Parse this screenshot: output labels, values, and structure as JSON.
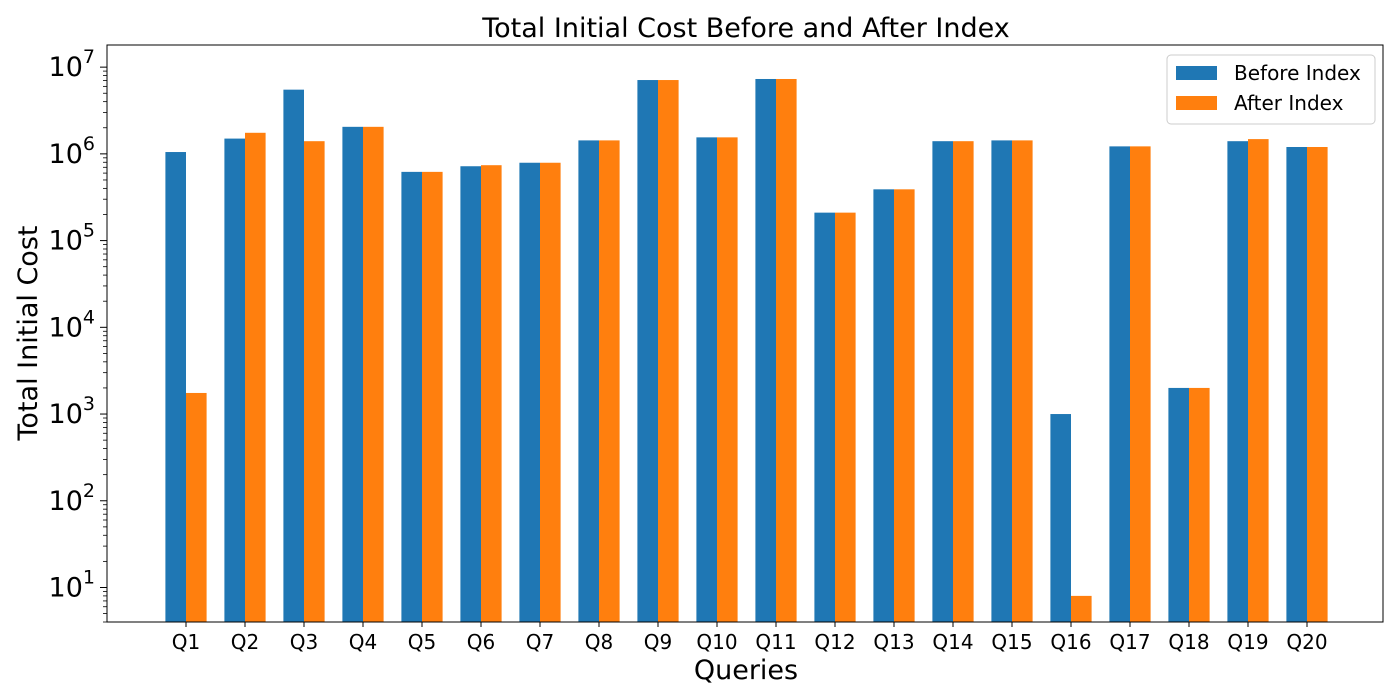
{
  "chart_data": {
    "type": "bar",
    "title": "Total Initial Cost Before and After Index",
    "xlabel": "Queries",
    "ylabel": "Total Initial Cost",
    "yscale": "log",
    "ylim": [
      4,
      18000000
    ],
    "yticks": [
      {
        "base": "10",
        "exp": "1",
        "value": 10
      },
      {
        "base": "10",
        "exp": "2",
        "value": 100
      },
      {
        "base": "10",
        "exp": "3",
        "value": 1000
      },
      {
        "base": "10",
        "exp": "4",
        "value": 10000
      },
      {
        "base": "10",
        "exp": "5",
        "value": 100000
      },
      {
        "base": "10",
        "exp": "6",
        "value": 1000000
      },
      {
        "base": "10",
        "exp": "7",
        "value": 10000000
      }
    ],
    "categories": [
      "Q1",
      "Q2",
      "Q3",
      "Q4",
      "Q5",
      "Q6",
      "Q7",
      "Q8",
      "Q9",
      "Q10",
      "Q11",
      "Q12",
      "Q13",
      "Q14",
      "Q15",
      "Q16",
      "Q17",
      "Q18",
      "Q19",
      "Q20"
    ],
    "series": [
      {
        "name": "Before Index",
        "color": "#1f77b4",
        "values": [
          1050000,
          1500000,
          5500000,
          2050000,
          620000,
          720000,
          790000,
          1430000,
          7100000,
          1550000,
          7300000,
          210000,
          390000,
          1400000,
          1430000,
          1000,
          1220000,
          2000,
          1400000,
          1200000
        ]
      },
      {
        "name": "After Index",
        "color": "#ff7f0e",
        "values": [
          1750,
          1750000,
          1400000,
          2050000,
          620000,
          740000,
          790000,
          1430000,
          7100000,
          1550000,
          7300000,
          210000,
          390000,
          1400000,
          1430000,
          8,
          1220000,
          2000,
          1480000,
          1200000
        ]
      }
    ],
    "legend_position": "top-right",
    "grid": false
  }
}
